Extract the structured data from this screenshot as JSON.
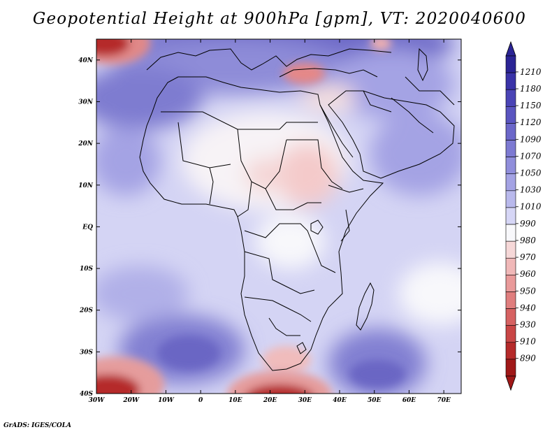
{
  "title": "Geopotential Height at 900hPa [gpm], VT: 2020040600",
  "credit": "GrADS: IGES/COLA",
  "map": {
    "lon_ticks": [
      "30W",
      "20W",
      "10W",
      "0",
      "10E",
      "20E",
      "30E",
      "40E",
      "50E",
      "60E",
      "70E"
    ],
    "lat_ticks": [
      "40N",
      "30N",
      "20N",
      "10N",
      "EQ",
      "10S",
      "20S",
      "30S",
      "40S"
    ],
    "lon_range": [
      -30,
      75
    ],
    "lat_range": [
      -40,
      45
    ]
  },
  "colorbar": {
    "labels": [
      "1210",
      "1180",
      "1150",
      "1120",
      "1090",
      "1070",
      "1050",
      "1030",
      "1010",
      "990",
      "980",
      "970",
      "960",
      "950",
      "940",
      "930",
      "910",
      "890"
    ],
    "colors": [
      "#2b2495",
      "#3a33a8",
      "#4a44b6",
      "#5a55c0",
      "#6b67c9",
      "#7d7ad2",
      "#908edb",
      "#a4a3e4",
      "#b9b9ec",
      "#d6d6f6",
      "#f8f8fb",
      "#f6d8d8",
      "#f0b8b8",
      "#e99a9a",
      "#e07e7e",
      "#d66262",
      "#c94646",
      "#b52a2a",
      "#a01818"
    ],
    "low_color": "#a01818",
    "high_color": "#2b2495"
  }
}
